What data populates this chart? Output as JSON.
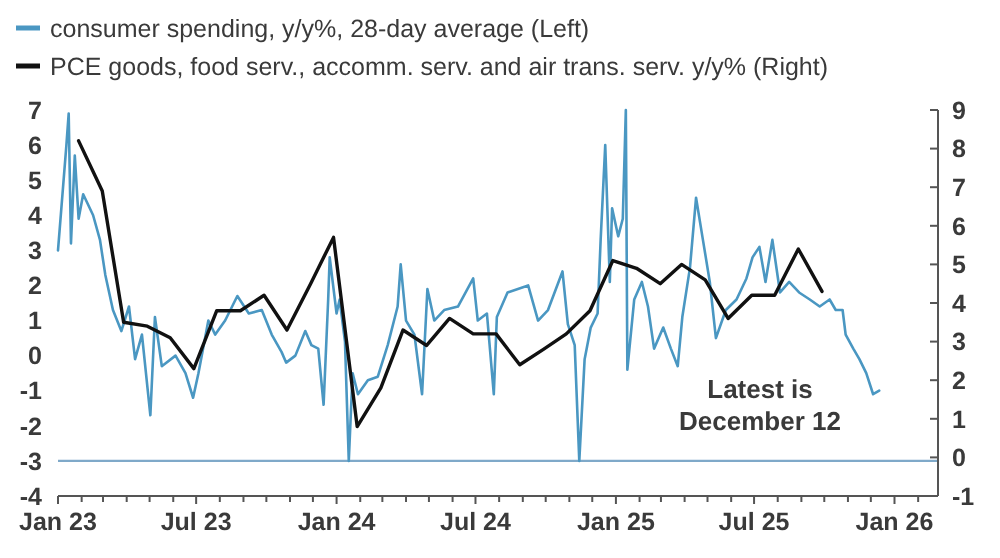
{
  "chart_data": {
    "type": "line",
    "legend": "top",
    "marker": "none",
    "line_style": "solid",
    "grid": false,
    "xlim": [
      "2023-01-01",
      "2026-02-27"
    ],
    "xticks": [
      {
        "value": "2023-01-01",
        "label": "Jan 23"
      },
      {
        "value": "2023-02-01",
        "label": null
      },
      {
        "value": "2023-03-01",
        "label": null
      },
      {
        "value": "2023-04-01",
        "label": null
      },
      {
        "value": "2023-05-01",
        "label": null
      },
      {
        "value": "2023-06-01",
        "label": null
      },
      {
        "value": "2023-07-01",
        "label": "Jul 23"
      },
      {
        "value": "2023-08-01",
        "label": null
      },
      {
        "value": "2023-09-01",
        "label": null
      },
      {
        "value": "2023-10-01",
        "label": null
      },
      {
        "value": "2023-11-01",
        "label": null
      },
      {
        "value": "2023-12-01",
        "label": null
      },
      {
        "value": "2024-01-01",
        "label": "Jan 24"
      },
      {
        "value": "2024-02-01",
        "label": null
      },
      {
        "value": "2024-03-01",
        "label": null
      },
      {
        "value": "2024-04-01",
        "label": null
      },
      {
        "value": "2024-05-01",
        "label": null
      },
      {
        "value": "2024-06-01",
        "label": null
      },
      {
        "value": "2024-07-01",
        "label": "Jul 24"
      },
      {
        "value": "2024-08-01",
        "label": null
      },
      {
        "value": "2024-09-01",
        "label": null
      },
      {
        "value": "2024-10-01",
        "label": null
      },
      {
        "value": "2024-11-01",
        "label": null
      },
      {
        "value": "2024-12-01",
        "label": null
      },
      {
        "value": "2025-01-01",
        "label": "Jan 25"
      },
      {
        "value": "2025-02-01",
        "label": null
      },
      {
        "value": "2025-03-01",
        "label": null
      },
      {
        "value": "2025-04-01",
        "label": null
      },
      {
        "value": "2025-05-01",
        "label": null
      },
      {
        "value": "2025-06-01",
        "label": null
      },
      {
        "value": "2025-07-01",
        "label": "Jul 25"
      },
      {
        "value": "2025-08-01",
        "label": null
      },
      {
        "value": "2025-09-01",
        "label": null
      },
      {
        "value": "2025-10-01",
        "label": null
      },
      {
        "value": "2025-11-01",
        "label": null
      },
      {
        "value": "2025-12-01",
        "label": null
      },
      {
        "value": "2026-01-01",
        "label": "Jan 26"
      },
      {
        "value": "2026-02-01",
        "label": null
      }
    ],
    "ylim": [
      -4,
      7
    ],
    "yticks": [
      -4,
      -3,
      -2,
      -1,
      0,
      1,
      2,
      3,
      4,
      5,
      6,
      7
    ],
    "y2lim": [
      -1,
      9
    ],
    "y2ticks": [
      -1,
      0,
      1,
      2,
      3,
      4,
      5,
      6,
      7,
      8,
      9
    ],
    "ref_lines": [
      {
        "axis": "y",
        "value": -3,
        "color": "#7fa9c9"
      }
    ],
    "annotations": [
      "Latest is\nDecember 12"
    ],
    "series": [
      {
        "name": "consumer spending, y/y%, 28-day average (Left)",
        "color": "#4a97c2",
        "x": [
          "2023-01-01",
          "2023-01-12",
          "2023-01-15",
          "2023-01-18",
          "2023-01-23",
          "2023-01-28",
          "2023-02-03",
          "2023-02-16",
          "2023-02-25",
          "2023-03-04",
          "2023-03-14",
          "2023-03-25",
          "2023-04-04",
          "2023-04-12",
          "2023-04-21",
          "2023-05-02",
          "2023-05-08",
          "2023-05-17",
          "2023-06-04",
          "2023-06-17",
          "2023-06-27",
          "2023-07-04",
          "2023-07-17",
          "2023-07-26",
          "2023-08-08",
          "2023-08-24",
          "2023-09-08",
          "2023-09-25",
          "2023-10-08",
          "2023-10-21",
          "2023-10-27",
          "2023-11-08",
          "2023-11-21",
          "2023-11-29",
          "2023-12-08",
          "2023-12-15",
          "2023-12-21",
          "2023-12-23",
          "2024-01-01",
          "2024-01-05",
          "2024-01-12",
          "2024-01-17",
          "2024-01-22",
          "2024-01-29",
          "2024-02-11",
          "2024-02-24",
          "2024-03-08",
          "2024-03-21",
          "2024-03-25",
          "2024-04-01",
          "2024-04-12",
          "2024-04-22",
          "2024-04-29",
          "2024-05-08",
          "2024-05-21",
          "2024-06-08",
          "2024-06-28",
          "2024-07-04",
          "2024-07-16",
          "2024-07-25",
          "2024-07-29",
          "2024-08-12",
          "2024-09-08",
          "2024-09-21",
          "2024-10-04",
          "2024-10-23",
          "2024-10-30",
          "2024-11-08",
          "2024-11-14",
          "2024-11-21",
          "2024-11-29",
          "2024-12-08",
          "2024-12-12",
          "2024-12-18",
          "2024-12-24",
          "2024-12-27",
          "2025-01-04",
          "2025-01-10",
          "2025-01-14",
          "2025-01-16",
          "2025-01-25",
          "2025-02-04",
          "2025-02-12",
          "2025-02-20",
          "2025-03-04",
          "2025-03-14",
          "2025-03-23",
          "2025-03-29",
          "2025-04-08",
          "2025-04-16",
          "2025-04-25",
          "2025-05-04",
          "2025-05-12",
          "2025-05-25",
          "2025-06-08",
          "2025-06-21",
          "2025-06-29",
          "2025-07-08",
          "2025-07-16",
          "2025-07-25",
          "2025-08-04",
          "2025-08-16",
          "2025-08-29",
          "2025-09-12",
          "2025-09-25",
          "2025-10-08",
          "2025-10-16",
          "2025-10-25",
          "2025-10-29",
          "2025-11-08",
          "2025-11-16",
          "2025-11-25",
          "2025-12-04",
          "2025-12-12"
        ],
        "values": [
          3.0,
          6.0,
          6.9,
          3.2,
          5.7,
          3.9,
          4.6,
          4.0,
          3.3,
          2.3,
          1.3,
          0.7,
          1.4,
          -0.1,
          0.6,
          -1.7,
          1.1,
          -0.3,
          0.0,
          -0.5,
          -1.2,
          -0.5,
          1.0,
          0.6,
          1.0,
          1.7,
          1.2,
          1.3,
          0.6,
          0.1,
          -0.2,
          0.0,
          0.7,
          0.3,
          0.2,
          -1.4,
          1.6,
          2.8,
          1.2,
          1.6,
          0.4,
          -3.0,
          -0.5,
          -1.1,
          -0.7,
          -0.6,
          0.3,
          1.4,
          2.6,
          1.0,
          0.6,
          -1.1,
          1.9,
          1.0,
          1.3,
          1.4,
          2.2,
          1.0,
          1.2,
          -1.1,
          1.1,
          1.8,
          2.0,
          1.0,
          1.3,
          2.4,
          0.9,
          0.3,
          -3.0,
          -0.1,
          0.8,
          1.2,
          3.3,
          6.0,
          2.1,
          4.2,
          3.4,
          3.9,
          7.0,
          -0.4,
          1.6,
          2.1,
          1.4,
          0.2,
          0.8,
          0.2,
          -0.3,
          1.1,
          2.5,
          4.5,
          3.3,
          2.1,
          0.5,
          1.3,
          1.6,
          2.2,
          2.8,
          3.1,
          2.1,
          3.3,
          1.8,
          2.1,
          1.8,
          1.6,
          1.4,
          1.6,
          1.3,
          1.3,
          0.6,
          0.2,
          -0.1,
          -0.5,
          -1.1,
          -1.0
        ]
      },
      {
        "name": "PCE goods, food serv., accomm. serv. and air trans. serv. y/y% (Right)",
        "color": "#111111",
        "axis": "y2",
        "x": [
          "2023-01-28",
          "2023-02-28",
          "2023-03-28",
          "2023-04-28",
          "2023-05-28",
          "2023-06-28",
          "2023-07-28",
          "2023-08-28",
          "2023-09-28",
          "2023-10-28",
          "2023-11-28",
          "2023-12-28",
          "2024-01-28",
          "2024-02-28",
          "2024-03-28",
          "2024-04-28",
          "2024-05-28",
          "2024-06-28",
          "2024-07-28",
          "2024-08-28",
          "2024-09-28",
          "2024-10-28",
          "2024-11-28",
          "2024-12-28",
          "2025-01-28",
          "2025-02-28",
          "2025-03-28",
          "2025-04-28",
          "2025-05-28",
          "2025-06-28",
          "2025-07-28",
          "2025-08-28",
          "2025-09-28"
        ],
        "values": [
          8.2,
          6.9,
          3.5,
          3.4,
          3.1,
          2.3,
          3.8,
          3.8,
          4.2,
          3.3,
          4.5,
          5.7,
          0.8,
          1.8,
          3.3,
          2.9,
          3.6,
          3.2,
          3.2,
          2.4,
          2.8,
          3.2,
          3.8,
          5.1,
          4.9,
          4.5,
          5.0,
          4.6,
          3.6,
          4.2,
          4.2,
          5.4,
          4.3
        ]
      }
    ]
  }
}
